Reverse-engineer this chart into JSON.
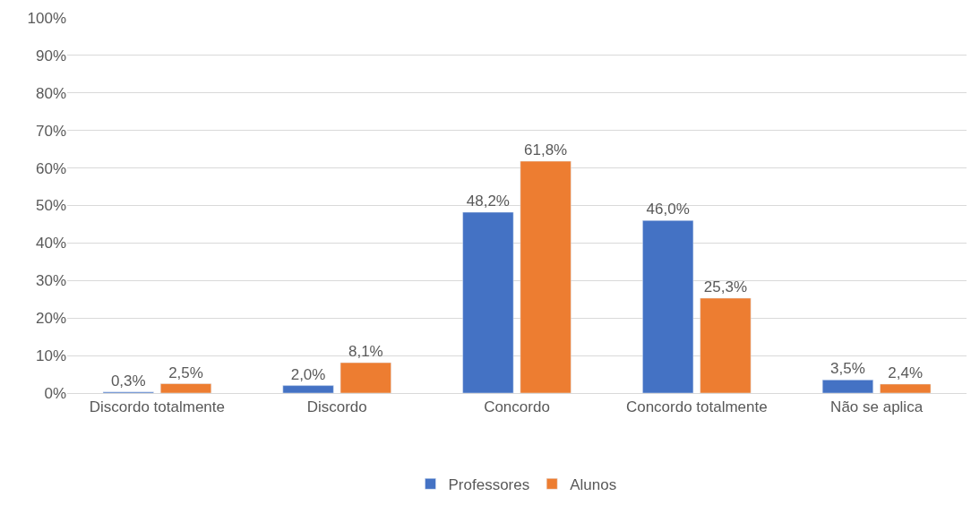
{
  "chart_data": {
    "type": "bar",
    "categories": [
      "Discordo totalmente",
      "Discordo",
      "Concordo",
      "Concordo totalmente",
      "Não se aplica"
    ],
    "series": [
      {
        "name": "Professores",
        "color": "#4472c4",
        "values": [
          0.3,
          2.0,
          48.2,
          46.0,
          3.5
        ],
        "value_labels": [
          "0,3%",
          "2,0%",
          "48,2%",
          "46,0%",
          "3,5%"
        ]
      },
      {
        "name": "Alunos",
        "color": "#ed7d31",
        "values": [
          2.5,
          8.1,
          61.8,
          25.3,
          2.4
        ],
        "value_labels": [
          "2,5%",
          "8,1%",
          "61,8%",
          "25,3%",
          "2,4%"
        ]
      }
    ],
    "ylim": [
      0,
      100
    ],
    "yticks": [
      {
        "value": 0,
        "label": "0%"
      },
      {
        "value": 10,
        "label": "10%"
      },
      {
        "value": 20,
        "label": "20%"
      },
      {
        "value": 30,
        "label": "30%"
      },
      {
        "value": 40,
        "label": "40%"
      },
      {
        "value": 50,
        "label": "50%"
      },
      {
        "value": 60,
        "label": "60%"
      },
      {
        "value": 70,
        "label": "70%"
      },
      {
        "value": 80,
        "label": "80%"
      },
      {
        "value": 90,
        "label": "90%"
      },
      {
        "value": 100,
        "label": "100%"
      }
    ],
    "grid": "y",
    "legend": "bottom"
  }
}
